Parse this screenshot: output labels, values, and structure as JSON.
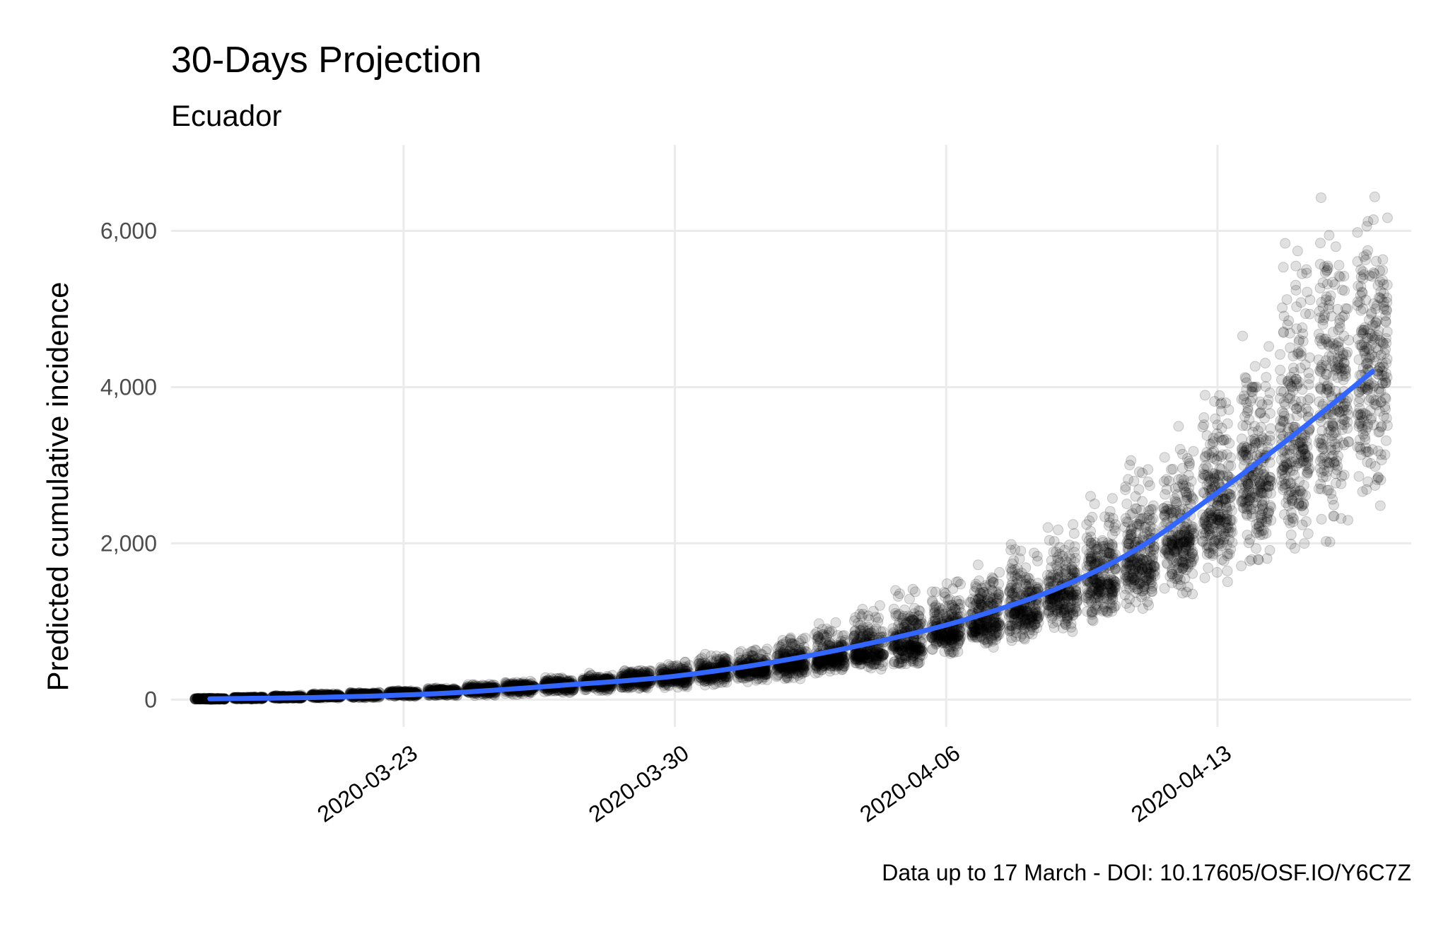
{
  "chart_data": {
    "type": "scatter",
    "title": "30-Days Projection",
    "subtitle": "Ecuador",
    "xlabel": "",
    "ylabel": "Predicted cumulative incidence",
    "caption": "Data up to 17 March - DOI: 10.17605/OSF.IO/Y6C7Z",
    "x_type": "date",
    "xlim": [
      "2020-03-17",
      "2020-04-18"
    ],
    "ylim": [
      -350,
      7100
    ],
    "x_ticks": [
      "2020-03-23",
      "2020-03-30",
      "2020-04-06",
      "2020-04-13"
    ],
    "y_ticks": [
      0,
      2000,
      4000,
      6000
    ],
    "y_tick_labels": [
      "0",
      "2,000",
      "4,000",
      "6,000"
    ],
    "grid": true,
    "legend": "none",
    "point_color": "#000000",
    "point_alpha": 0.12,
    "line_color": "#3366ff",
    "series": [
      {
        "kind": "points-summary",
        "x": [
          "2020-03-18",
          "2020-03-19",
          "2020-03-20",
          "2020-03-21",
          "2020-03-22",
          "2020-03-23",
          "2020-03-24",
          "2020-03-25",
          "2020-03-26",
          "2020-03-27",
          "2020-03-28",
          "2020-03-29",
          "2020-03-30",
          "2020-03-31",
          "2020-04-01",
          "2020-04-02",
          "2020-04-03",
          "2020-04-04",
          "2020-04-05",
          "2020-04-06",
          "2020-04-07",
          "2020-04-08",
          "2020-04-09",
          "2020-04-10",
          "2020-04-11",
          "2020-04-12",
          "2020-04-13",
          "2020-04-14",
          "2020-04-15",
          "2020-04-16",
          "2020-04-17"
        ],
        "center": [
          10,
          20,
          30,
          45,
          60,
          80,
          100,
          125,
          150,
          180,
          210,
          250,
          290,
          340,
          390,
          450,
          520,
          600,
          700,
          850,
          1000,
          1150,
          1350,
          1550,
          1800,
          2050,
          2400,
          2850,
          3300,
          3800,
          4250
        ],
        "low": [
          0,
          5,
          10,
          15,
          20,
          30,
          40,
          50,
          60,
          80,
          100,
          120,
          150,
          180,
          220,
          260,
          320,
          380,
          450,
          550,
          650,
          750,
          850,
          1000,
          1150,
          1300,
          1500,
          1700,
          1900,
          2000,
          2300
        ],
        "high": [
          20,
          40,
          60,
          80,
          100,
          130,
          160,
          200,
          240,
          290,
          340,
          420,
          480,
          600,
          700,
          850,
          1050,
          1250,
          1450,
          1550,
          1750,
          2000,
          2250,
          2700,
          3100,
          3600,
          4200,
          5000,
          5900,
          6900,
          6500
        ]
      },
      {
        "kind": "smooth-line",
        "x": [
          "2020-03-18",
          "2020-03-21",
          "2020-03-24",
          "2020-03-27",
          "2020-03-30",
          "2020-04-02",
          "2020-04-05",
          "2020-04-07",
          "2020-04-09",
          "2020-04-11",
          "2020-04-13",
          "2020-04-15",
          "2020-04-17"
        ],
        "y": [
          10,
          30,
          80,
          180,
          300,
          520,
          830,
          1100,
          1450,
          1950,
          2650,
          3400,
          4200
        ]
      }
    ]
  }
}
